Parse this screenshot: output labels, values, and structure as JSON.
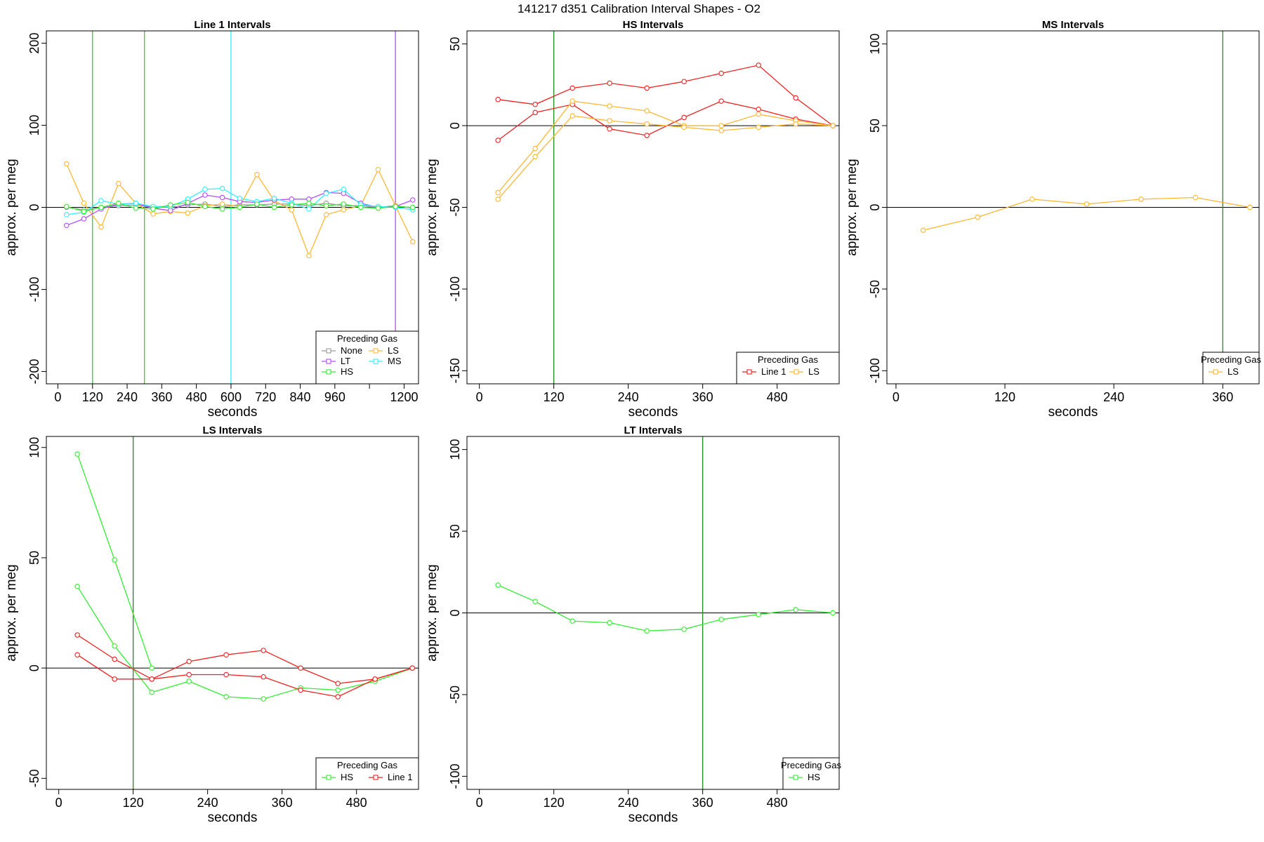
{
  "figure": {
    "title": "141217   d351   Calibration Interval Shapes - O2"
  },
  "colors": {
    "None": "#999999",
    "LS": "#ffb833",
    "LT": "#b34dff",
    "MS": "#33eeff",
    "HS": "#33ee33",
    "Line 1": "#ee2222",
    "vline_green": "#228B22",
    "vline_bright_green": "#33cc33",
    "vline_cyan": "#33eeff",
    "vline_purple": "#b34dff"
  },
  "chart_data": [
    {
      "type": "line",
      "title": "Line 1 Intervals",
      "xlabel": "seconds",
      "ylabel": "approx. per meg",
      "xlim": [
        -40,
        1250
      ],
      "ylim": [
        -215,
        215
      ],
      "xticks": [
        0,
        120,
        240,
        360,
        480,
        600,
        720,
        840,
        960,
        1080,
        1200
      ],
      "xtick_labels": [
        "0",
        "120",
        "240",
        "360",
        "480",
        "600",
        "720",
        "840",
        "960",
        "",
        "1200"
      ],
      "yticks": [
        -200,
        -100,
        0,
        100,
        200
      ],
      "ytick_labels": [
        "-200",
        "-100",
        "0",
        "100",
        "200"
      ],
      "vlines": [
        {
          "x": 120,
          "color": "vline_bright_green"
        },
        {
          "x": 300,
          "color": "vline_bright_green"
        },
        {
          "x": 600,
          "color": "vline_cyan"
        },
        {
          "x": 1170,
          "color": "vline_purple"
        }
      ],
      "legend": {
        "title": "Preceding Gas",
        "position": "bottom-right",
        "columns": 2,
        "entries": [
          "None",
          "LS",
          "LT",
          "MS",
          "HS"
        ]
      },
      "series": [
        {
          "name": "None",
          "x": [
            30,
            90,
            150,
            210,
            270,
            330,
            390,
            450,
            510,
            570,
            630,
            690,
            750,
            810,
            870,
            930,
            990,
            1050,
            1110,
            1170,
            1230
          ],
          "values": [
            0,
            -3,
            0,
            2,
            3,
            0,
            0,
            3,
            4,
            1,
            3,
            3,
            4,
            4,
            2,
            5,
            2,
            2,
            0,
            2,
            -1
          ]
        },
        {
          "name": "LS",
          "x": [
            30,
            90,
            150,
            210,
            270,
            330,
            390,
            450,
            510,
            570,
            630,
            690,
            750,
            810,
            870,
            930,
            990,
            1050,
            1110,
            1170,
            1230
          ],
          "values": [
            53,
            5,
            -24,
            29,
            5,
            -8,
            -5,
            -7,
            2,
            4,
            1,
            40,
            8,
            -3,
            -59,
            -9,
            -3,
            2,
            46,
            2,
            -42
          ]
        },
        {
          "name": "LT",
          "x": [
            30,
            90,
            150,
            210,
            270,
            330,
            390,
            450,
            510,
            570,
            630,
            690,
            750,
            810,
            870,
            930,
            990,
            1050,
            1110,
            1170,
            1230
          ],
          "values": [
            -22,
            -14,
            -2,
            4,
            5,
            -1,
            -4,
            5,
            15,
            12,
            7,
            6,
            9,
            10,
            10,
            18,
            17,
            5,
            0,
            1,
            9
          ]
        },
        {
          "name": "MS",
          "x": [
            30,
            90,
            150,
            210,
            270,
            330,
            390,
            450,
            510,
            570,
            630,
            690,
            750,
            810,
            870,
            930,
            990,
            1050,
            1110,
            1170,
            1230
          ],
          "values": [
            -9,
            -6,
            8,
            4,
            5,
            1,
            1,
            10,
            22,
            23,
            11,
            7,
            11,
            5,
            -2,
            17,
            22,
            3,
            1,
            0,
            -3
          ]
        },
        {
          "name": "HS",
          "x": [
            30,
            90,
            150,
            210,
            270,
            330,
            390,
            450,
            510,
            570,
            630,
            690,
            750,
            810,
            870,
            930,
            990,
            1050,
            1110,
            1170,
            1230
          ],
          "values": [
            1,
            -5,
            0,
            5,
            -1,
            -2,
            3,
            6,
            1,
            -2,
            0,
            4,
            0,
            3,
            5,
            2,
            4,
            0,
            -1,
            1,
            0
          ]
        }
      ]
    },
    {
      "type": "line",
      "title": "HS Intervals",
      "xlabel": "seconds",
      "ylabel": "approx. per meg",
      "xlim": [
        -20,
        580
      ],
      "ylim": [
        -158,
        58
      ],
      "xticks": [
        0,
        120,
        240,
        360,
        480
      ],
      "xtick_labels": [
        "0",
        "120",
        "240",
        "360",
        "480"
      ],
      "yticks": [
        -150,
        -100,
        -50,
        0,
        50
      ],
      "ytick_labels": [
        "-150",
        "-100",
        "-50",
        "0",
        "50"
      ],
      "vlines": [
        {
          "x": 120,
          "color": "vline_green"
        }
      ],
      "legend": {
        "title": "Preceding Gas",
        "position": "bottom-right",
        "columns": 2,
        "entries": [
          "Line 1",
          "LS"
        ]
      },
      "series": [
        {
          "name": "Line 1",
          "x": [
            30,
            90,
            150,
            210,
            270,
            330,
            390,
            450,
            510,
            570
          ],
          "values": [
            16,
            13,
            23,
            26,
            23,
            27,
            32,
            37,
            17,
            0
          ]
        },
        {
          "name": "Line 1",
          "x": [
            30,
            90,
            150,
            210,
            270,
            330,
            390,
            450,
            510,
            570
          ],
          "values": [
            -9,
            8,
            13,
            -2,
            -6,
            5,
            15,
            10,
            4,
            0
          ]
        },
        {
          "name": "LS",
          "x": [
            30,
            90,
            150,
            210,
            270,
            330,
            390,
            450,
            510,
            570
          ],
          "values": [
            -41,
            -14,
            15,
            12,
            9,
            0,
            0,
            7,
            3,
            0
          ]
        },
        {
          "name": "LS",
          "x": [
            30,
            90,
            150,
            210,
            270,
            330,
            390,
            450,
            510,
            570
          ],
          "values": [
            -45,
            -19,
            6,
            3,
            1,
            -1,
            -3,
            -1,
            1,
            0
          ]
        }
      ]
    },
    {
      "type": "line",
      "title": "MS Intervals",
      "xlabel": "seconds",
      "ylabel": "approx. per meg",
      "xlim": [
        -10,
        400
      ],
      "ylim": [
        -108,
        108
      ],
      "xticks": [
        0,
        120,
        240,
        360
      ],
      "xtick_labels": [
        "0",
        "120",
        "240",
        "360"
      ],
      "yticks": [
        -100,
        -50,
        0,
        50,
        100
      ],
      "ytick_labels": [
        "-100",
        "-50",
        "0",
        "50",
        "100"
      ],
      "vlines": [
        {
          "x": 360,
          "color": "vline_green"
        }
      ],
      "legend": {
        "title": "Preceding Gas",
        "position": "bottom-right",
        "columns": 1,
        "entries": [
          "LS"
        ]
      },
      "series": [
        {
          "name": "LS",
          "x": [
            30,
            90,
            150,
            210,
            270,
            330,
            390
          ],
          "values": [
            -14,
            -6,
            5,
            2,
            5,
            6,
            0
          ]
        }
      ]
    },
    {
      "type": "line",
      "title": "LS Intervals",
      "xlabel": "seconds",
      "ylabel": "approx. per meg",
      "xlim": [
        -20,
        580
      ],
      "ylim": [
        -55,
        105
      ],
      "xticks": [
        0,
        120,
        240,
        360,
        480
      ],
      "xtick_labels": [
        "0",
        "120",
        "240",
        "360",
        "480"
      ],
      "yticks": [
        -50,
        0,
        50,
        100
      ],
      "ytick_labels": [
        "-50",
        "0",
        "50",
        "100"
      ],
      "vlines": [
        {
          "x": 120,
          "color": "vline_green"
        }
      ],
      "legend": {
        "title": "Preceding Gas",
        "position": "bottom-right",
        "columns": 2,
        "entries": [
          "HS",
          "Line 1"
        ]
      },
      "series": [
        {
          "name": "HS",
          "x": [
            30,
            90,
            150
          ],
          "values": [
            97,
            49,
            0
          ]
        },
        {
          "name": "HS",
          "x": [
            30,
            90,
            150,
            210,
            270,
            330,
            390,
            450,
            510,
            570
          ],
          "values": [
            37,
            10,
            -11,
            -6,
            -13,
            -14,
            -9,
            -10,
            -6,
            0
          ]
        },
        {
          "name": "Line 1",
          "x": [
            30,
            90,
            150,
            210,
            270,
            330,
            390,
            450,
            510,
            570
          ],
          "values": [
            15,
            4,
            -5,
            3,
            6,
            8,
            0,
            -7,
            -5,
            0
          ]
        },
        {
          "name": "Line 1",
          "x": [
            30,
            90,
            150,
            210,
            270,
            330,
            390,
            450,
            510,
            570
          ],
          "values": [
            6,
            -5,
            -5,
            -3,
            -3,
            -4,
            -10,
            -13,
            -5,
            0
          ]
        }
      ]
    },
    {
      "type": "line",
      "title": "LT Intervals",
      "xlabel": "seconds",
      "ylabel": "approx. per meg",
      "xlim": [
        -20,
        580
      ],
      "ylim": [
        -108,
        108
      ],
      "xticks": [
        0,
        120,
        240,
        360,
        480
      ],
      "xtick_labels": [
        "0",
        "120",
        "240",
        "360",
        "480"
      ],
      "yticks": [
        -100,
        -50,
        0,
        50,
        100
      ],
      "ytick_labels": [
        "-100",
        "-50",
        "0",
        "50",
        "100"
      ],
      "vlines": [
        {
          "x": 360,
          "color": "vline_green"
        }
      ],
      "legend": {
        "title": "Preceding Gas",
        "position": "bottom-right",
        "columns": 1,
        "entries": [
          "HS"
        ]
      },
      "series": [
        {
          "name": "HS",
          "x": [
            30,
            90,
            150,
            210,
            270,
            330,
            390,
            450,
            510,
            570
          ],
          "values": [
            17,
            7,
            -5,
            -6,
            -11,
            -10,
            -4,
            -1,
            2,
            0
          ]
        }
      ]
    }
  ]
}
